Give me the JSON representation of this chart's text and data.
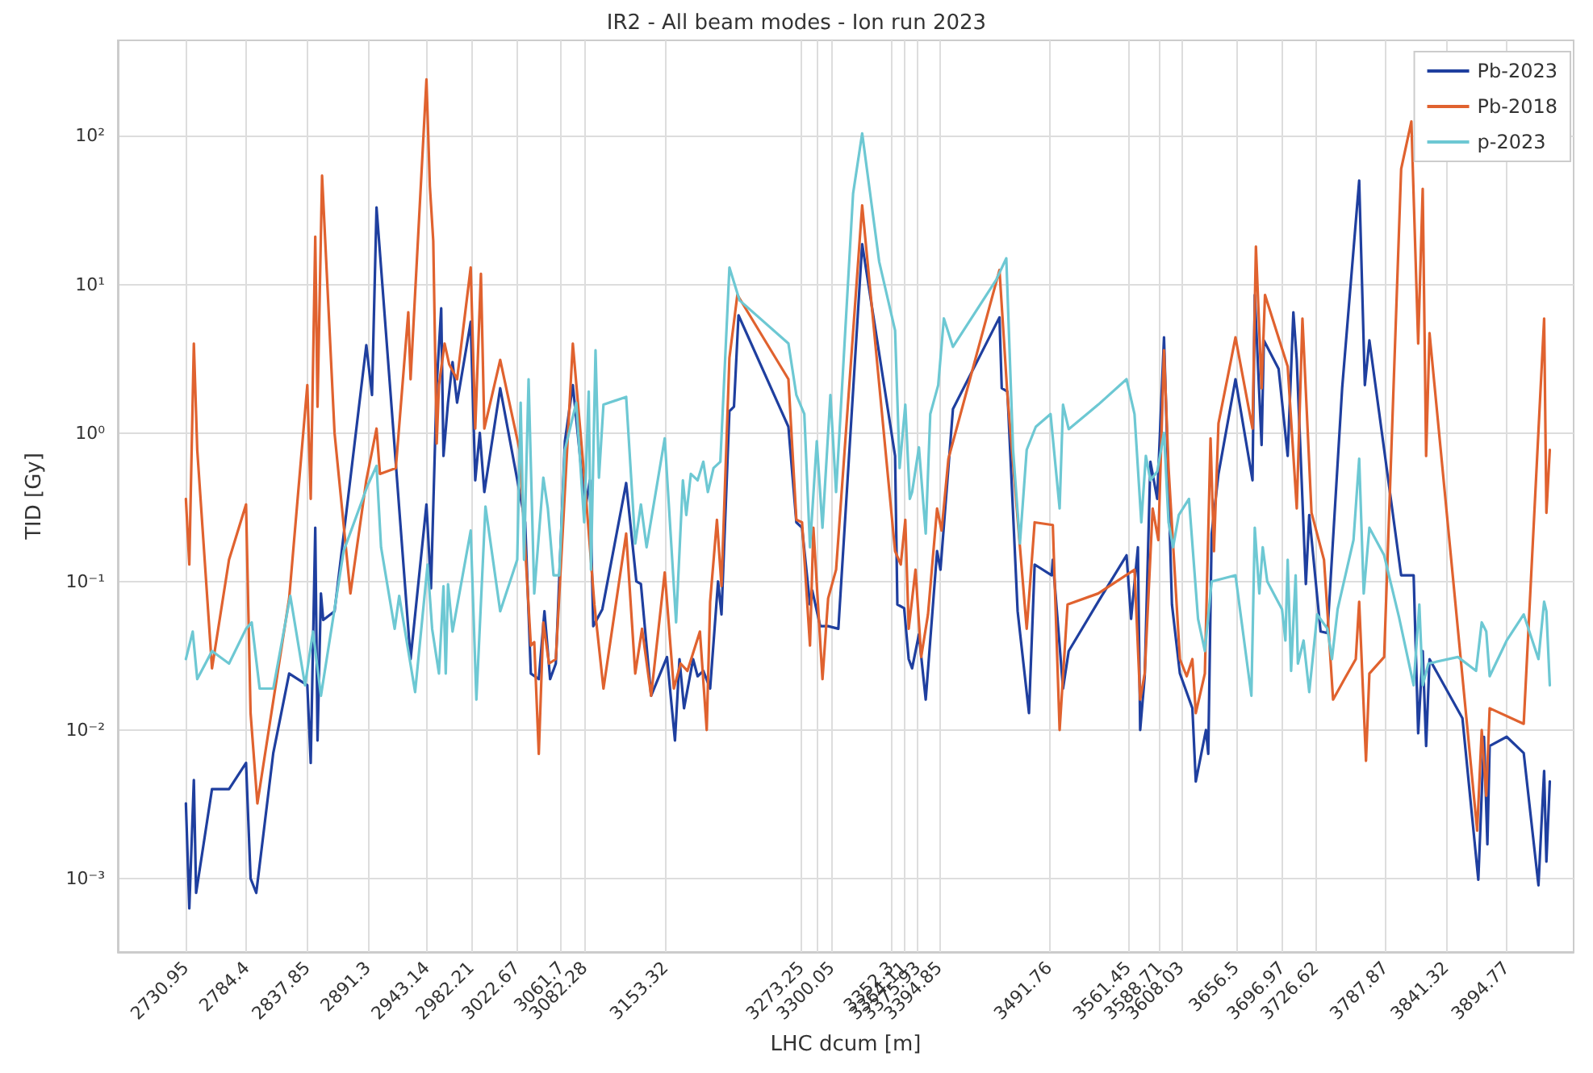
{
  "chart_data": {
    "type": "line",
    "title": "IR2 - All beam modes - Ion run 2023",
    "xlabel": "LHC dcum [m]",
    "ylabel": "TID [Gy]",
    "log": "y",
    "grid": true,
    "legend": "top right",
    "xlim": [
      2671,
      3954
    ],
    "xticks": [
      2730.95,
      2784.4,
      2837.85,
      2891.3,
      2943.14,
      2982.21,
      3022.67,
      3061.7,
      3082.28,
      3153.32,
      3273.25,
      {
        "value": 3286.65,
        "label": null
      },
      3300.05,
      3352.3,
      3364.11,
      3375.93,
      3394.85,
      3491.76,
      3561.45,
      3588.71,
      3608.03,
      3656.5,
      3696.97,
      3726.62,
      3787.87,
      3841.32,
      3894.77
    ],
    "ylim": [
      0.00032,
      440
    ],
    "yticks": [
      {
        "value": 0.001,
        "label": "10⁻³"
      },
      {
        "value": 0.01,
        "label": "10⁻²"
      },
      {
        "value": 0.1,
        "label": "10⁻¹"
      },
      {
        "value": 1,
        "label": "10⁰"
      },
      {
        "value": 10,
        "label": "10¹"
      },
      {
        "value": 100,
        "label": "10²"
      }
    ],
    "series": [
      {
        "name": "Pb-2023",
        "color": "#1f3f9f",
        "x": [
          2731,
          2734,
          2738,
          2740,
          2754,
          2769,
          2784,
          2788,
          2793,
          2808,
          2822,
          2838,
          2841,
          2845,
          2847,
          2850,
          2852,
          2862,
          2890,
          2895,
          2899,
          2929,
          2943,
          2947,
          2952,
          2956,
          2958,
          2962,
          2966,
          2970,
          2982,
          2986,
          2990,
          2994,
          3008,
          3030,
          3035,
          3042,
          3047,
          3052,
          3057,
          3065,
          3072,
          3083,
          3087,
          3090,
          3098,
          3119,
          3128,
          3132,
          3141,
          3155,
          3162,
          3166,
          3170,
          3178,
          3182,
          3187,
          3193,
          3200,
          3203,
          3210,
          3214,
          3218,
          3262,
          3269,
          3274,
          3281,
          3283,
          3290,
          3297,
          3306,
          3327,
          3356,
          3358,
          3364,
          3368,
          3371,
          3377,
          3383,
          3393,
          3396,
          3407,
          3448,
          3450,
          3455,
          3464,
          3474,
          3479,
          3494,
          3495,
          3504,
          3509,
          3535,
          3560,
          3564,
          3570,
          3572,
          3576,
          3581,
          3587,
          3593,
          3600,
          3607,
          3618,
          3621,
          3630,
          3632,
          3635,
          3641,
          3656,
          3671,
          3673,
          3679,
          3681,
          3694,
          3702,
          3707,
          3710,
          3718,
          3721,
          3731,
          3737,
          3750,
          3765,
          3770,
          3774,
          3802,
          3813,
          3817,
          3821,
          3824,
          3827,
          3856,
          3870,
          3875,
          3878,
          3880,
          3895,
          3910,
          3923,
          3928,
          3930,
          3933
        ],
        "values": [
          0.0032,
          0.00063,
          0.0046,
          0.0008,
          0.004,
          0.004,
          0.006,
          0.001,
          0.0008,
          0.007,
          0.024,
          0.02,
          0.006,
          0.23,
          0.0085,
          0.083,
          0.055,
          0.063,
          3.9,
          1.8,
          33,
          0.03,
          0.33,
          0.09,
          2.1,
          6.9,
          0.7,
          1.6,
          3,
          1.6,
          5.6,
          0.48,
          1,
          0.4,
          2,
          0.25,
          0.024,
          0.022,
          0.063,
          0.022,
          0.028,
          0.88,
          2.1,
          0.31,
          0.48,
          0.05,
          0.065,
          0.46,
          0.1,
          0.096,
          0.017,
          0.031,
          0.0085,
          0.03,
          0.014,
          0.03,
          0.023,
          0.025,
          0.019,
          0.1,
          0.06,
          1.4,
          1.5,
          6.2,
          1.1,
          0.25,
          0.23,
          0.07,
          0.087,
          0.05,
          0.05,
          0.048,
          18.7,
          0.7,
          0.07,
          0.066,
          0.03,
          0.026,
          0.044,
          0.016,
          0.16,
          0.12,
          1.45,
          6,
          2,
          1.9,
          0.063,
          0.013,
          0.13,
          0.11,
          0.14,
          0.019,
          0.034,
          0.073,
          0.15,
          0.056,
          0.17,
          0.01,
          0.023,
          0.64,
          0.36,
          4.4,
          0.07,
          0.024,
          0.014,
          0.0045,
          0.01,
          0.0069,
          0.21,
          0.53,
          2.3,
          0.48,
          8.5,
          0.83,
          4.2,
          2.7,
          0.7,
          6.5,
          3.1,
          0.096,
          0.28,
          0.046,
          0.045,
          2,
          50,
          2.1,
          4.2,
          0.11,
          0.11,
          0.0095,
          0.034,
          0.0078,
          0.03,
          0.012,
          0.00098,
          0.009,
          0.0017,
          0.0078,
          0.009,
          0.007,
          0.0009,
          0.0053,
          0.0013,
          0.0045
        ]
      },
      {
        "name": "Pb-2018",
        "color": "#e0622f",
        "x": [
          2731,
          2734,
          2738,
          2741,
          2754,
          2769,
          2784,
          2788,
          2794,
          2822,
          2838,
          2841,
          2845,
          2847,
          2851,
          2862,
          2876,
          2890,
          2899,
          2902,
          2916,
          2927,
          2929,
          2943,
          2946,
          2949,
          2952,
          2954,
          2959,
          2963,
          2970,
          2982,
          2986,
          2991,
          2994,
          3008,
          3025,
          3035,
          3038,
          3042,
          3046,
          3051,
          3057,
          3063,
          3072,
          3083,
          3091,
          3099,
          3119,
          3127,
          3133,
          3141,
          3153,
          3161,
          3167,
          3173,
          3184,
          3190,
          3193,
          3199,
          3203,
          3210,
          3217,
          3262,
          3269,
          3274,
          3281,
          3284,
          3292,
          3297,
          3304,
          3327,
          3356,
          3361,
          3365,
          3368,
          3374,
          3379,
          3385,
          3393,
          3397,
          3403,
          3448,
          3455,
          3472,
          3479,
          3495,
          3501,
          3508,
          3535,
          3567,
          3572,
          3576,
          3583,
          3588,
          3593,
          3597,
          3607,
          3613,
          3618,
          3621,
          3629,
          3634,
          3637,
          3641,
          3656,
          3671,
          3674,
          3679,
          3682,
          3702,
          3710,
          3715,
          3723,
          3734,
          3737,
          3742,
          3752,
          3762,
          3765,
          3771,
          3774,
          3787,
          3802,
          3811,
          3817,
          3821,
          3824,
          3827,
          3869,
          3873,
          3877,
          3880,
          3910,
          3928,
          3930,
          3933
        ],
        "values": [
          0.36,
          0.13,
          4,
          0.77,
          0.026,
          0.14,
          0.33,
          0.013,
          0.0032,
          0.077,
          2.1,
          0.36,
          21,
          1.5,
          54,
          1,
          0.083,
          0.48,
          1.07,
          0.53,
          0.58,
          6.5,
          2.3,
          240,
          46,
          19.6,
          0.85,
          2.1,
          4,
          2.9,
          2.3,
          13,
          1.07,
          11.8,
          1.07,
          3.1,
          0.77,
          0.037,
          0.039,
          0.0069,
          0.053,
          0.028,
          0.03,
          0.21,
          4,
          0.42,
          0.07,
          0.019,
          0.21,
          0.024,
          0.048,
          0.017,
          0.115,
          0.019,
          0.028,
          0.025,
          0.046,
          0.01,
          0.073,
          0.26,
          0.093,
          3.2,
          8.5,
          2.3,
          0.26,
          0.25,
          0.037,
          0.23,
          0.022,
          0.077,
          0.12,
          34,
          0.16,
          0.13,
          0.26,
          0.048,
          0.12,
          0.031,
          0.06,
          0.31,
          0.22,
          0.67,
          12.5,
          1.8,
          0.048,
          0.25,
          0.24,
          0.01,
          0.07,
          0.083,
          0.12,
          0.016,
          0.024,
          0.31,
          0.19,
          3.6,
          0.58,
          0.03,
          0.023,
          0.03,
          0.013,
          0.024,
          0.92,
          0.16,
          1.16,
          4.4,
          1.07,
          18,
          2,
          8.5,
          2.8,
          0.31,
          5.9,
          0.29,
          0.14,
          0.063,
          0.016,
          0.022,
          0.03,
          0.073,
          0.0062,
          0.024,
          0.031,
          60,
          125,
          4,
          44,
          0.7,
          4.7,
          0.0021,
          0.01,
          0.0036,
          0.014,
          0.011,
          5.9,
          0.29,
          0.77
        ]
      },
      {
        "name": "p-2023",
        "color": "#6dc8d3",
        "x": [
          2731,
          2737,
          2741,
          2754,
          2769,
          2784,
          2789,
          2796,
          2808,
          2823,
          2836,
          2843,
          2850,
          2870,
          2891,
          2899,
          2903,
          2915,
          2919,
          2933,
          2944,
          2948,
          2954,
          2958,
          2960,
          2962,
          2966,
          2982,
          2987,
          2995,
          3008,
          3023,
          3026,
          3029,
          3033,
          3038,
          3046,
          3050,
          3055,
          3060,
          3065,
          3075,
          3082,
          3086,
          3088,
          3092,
          3095,
          3099,
          3119,
          3127,
          3132,
          3137,
          3153,
          3163,
          3169,
          3172,
          3176,
          3182,
          3187,
          3191,
          3196,
          3202,
          3210,
          3219,
          3262,
          3269,
          3276,
          3281,
          3287,
          3292,
          3299,
          3304,
          3319,
          3327,
          3342,
          3356,
          3360,
          3365,
          3369,
          3371,
          3377,
          3383,
          3387,
          3394,
          3399,
          3407,
          3445,
          3454,
          3460,
          3466,
          3472,
          3480,
          3493,
          3501,
          3504,
          3509,
          3535,
          3560,
          3567,
          3573,
          3577,
          3581,
          3587,
          3593,
          3597,
          3601,
          3606,
          3615,
          3623,
          3629,
          3635,
          3656,
          3670,
          3673,
          3677,
          3680,
          3684,
          3697,
          3700,
          3702,
          3705,
          3709,
          3711,
          3716,
          3721,
          3728,
          3737,
          3741,
          3746,
          3760,
          3765,
          3769,
          3774,
          3787,
          3800,
          3813,
          3818,
          3821,
          3826,
          3852,
          3868,
          3873,
          3877,
          3880,
          3895,
          3910,
          3923,
          3928,
          3930,
          3933
        ],
        "values": [
          0.03,
          0.046,
          0.022,
          0.034,
          0.028,
          0.048,
          0.053,
          0.019,
          0.019,
          0.08,
          0.02,
          0.046,
          0.017,
          0.16,
          0.44,
          0.6,
          0.17,
          0.048,
          0.08,
          0.018,
          0.13,
          0.048,
          0.024,
          0.093,
          0.024,
          0.096,
          0.046,
          0.22,
          0.016,
          0.32,
          0.063,
          0.14,
          1.6,
          0.14,
          2.3,
          0.083,
          0.5,
          0.31,
          0.11,
          0.11,
          0.77,
          1.6,
          0.25,
          1.9,
          0.12,
          3.6,
          0.5,
          1.55,
          1.75,
          0.18,
          0.33,
          0.17,
          0.92,
          0.053,
          0.48,
          0.28,
          0.53,
          0.48,
          0.64,
          0.4,
          0.58,
          0.64,
          13,
          7.8,
          4,
          1.8,
          1.34,
          0.17,
          0.88,
          0.23,
          1.8,
          0.4,
          41,
          104,
          14.2,
          4.9,
          0.58,
          1.55,
          0.36,
          0.4,
          0.8,
          0.21,
          1.34,
          2.1,
          5.9,
          3.8,
          10.7,
          15,
          0.77,
          0.18,
          0.77,
          1.1,
          1.34,
          0.31,
          1.55,
          1.06,
          1.55,
          2.3,
          1.34,
          0.25,
          0.7,
          0.48,
          0.55,
          1,
          0.25,
          0.17,
          0.28,
          0.36,
          0.056,
          0.034,
          0.1,
          0.11,
          0.017,
          0.23,
          0.083,
          0.17,
          0.1,
          0.065,
          0.04,
          0.14,
          0.025,
          0.11,
          0.028,
          0.04,
          0.018,
          0.06,
          0.048,
          0.03,
          0.065,
          0.19,
          0.67,
          0.083,
          0.23,
          0.15,
          0.058,
          0.02,
          0.07,
          0.02,
          0.028,
          0.031,
          0.025,
          0.053,
          0.046,
          0.023,
          0.04,
          0.06,
          0.03,
          0.073,
          0.063,
          0.02
        ]
      }
    ]
  }
}
